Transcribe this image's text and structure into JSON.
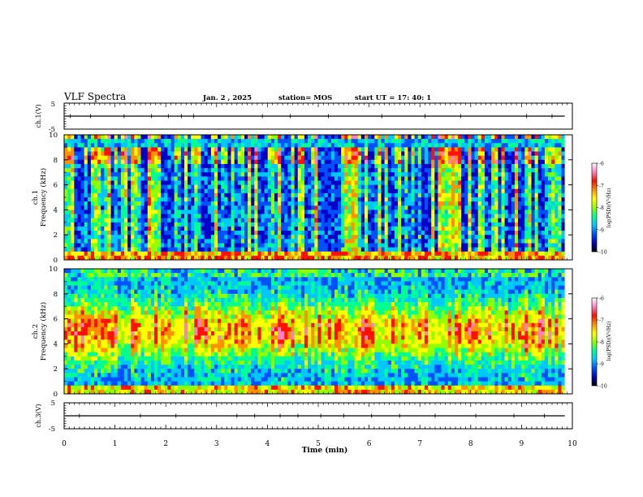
{
  "header": {
    "title": "VLF Spectra",
    "date": "Jan. 2 , 2025",
    "station": "station= MOS",
    "start": "start UT = 17: 40: 1"
  },
  "chart_data": [
    {
      "type": "line",
      "panel": "ch1-waveform",
      "ylabel": "ch.1(V)",
      "ylim": [
        -5,
        5
      ],
      "yticks": [
        "5",
        "-5"
      ],
      "xlim": [
        0,
        10
      ],
      "baseline": 0,
      "spike_times": [
        0.12,
        0.52,
        1.18,
        1.72,
        2.05,
        2.31,
        2.55,
        3.9,
        4.45,
        5.2,
        6.25,
        7.1,
        7.8,
        9.1,
        9.6
      ]
    },
    {
      "type": "heatmap",
      "panel": "ch1-spectrogram",
      "ylabel_1": "ch.1",
      "ylabel_2": "Frequency (kHz)",
      "ylim": [
        0,
        10
      ],
      "yticks": [
        "0",
        "2",
        "4",
        "6",
        "8",
        "10"
      ],
      "xlim": [
        0,
        9.85
      ],
      "colorbar": {
        "label": "log(PSD)(V²/Hz)",
        "range": [
          -10,
          -6
        ],
        "ticks": [
          "-6",
          "-7",
          "-8",
          "-9",
          "-10"
        ]
      }
    },
    {
      "type": "heatmap",
      "panel": "ch2-spectrogram",
      "ylabel_1": "ch.2",
      "ylabel_2": "Frequency (kHz)",
      "ylim": [
        0,
        10
      ],
      "yticks": [
        "0",
        "2",
        "4",
        "6",
        "8",
        "10"
      ],
      "xlim": [
        0,
        9.85
      ],
      "colorbar": {
        "label": "log(PSD)(V²/Hz)",
        "range": [
          -10,
          -6
        ],
        "ticks": [
          "-6",
          "-7",
          "-8",
          "-9",
          "-10"
        ]
      }
    },
    {
      "type": "line",
      "panel": "ch3-waveform",
      "ylabel": "ch.3(V)",
      "ylim": [
        -5,
        5
      ],
      "yticks": [
        "5",
        "-5"
      ],
      "xlim": [
        0,
        10
      ],
      "baseline": 0,
      "spike_times": [
        0.3,
        1.5,
        2.2,
        3.4,
        3.75,
        4.25,
        4.6,
        5.05,
        5.5,
        6.05,
        6.6,
        7.3,
        8.1,
        8.85,
        9.45
      ]
    }
  ],
  "xaxis": {
    "label": "Time (min)",
    "ticks": [
      "0",
      "1",
      "2",
      "3",
      "4",
      "5",
      "6",
      "7",
      "8",
      "9",
      "10"
    ],
    "range": [
      0,
      10
    ]
  },
  "colormap": [
    "#000000",
    "#0000c8",
    "#0050ff",
    "#00c8ff",
    "#00ff90",
    "#90ff00",
    "#ffff00",
    "#ff9000",
    "#ff1000",
    "#ff80c0",
    "#ffffff"
  ]
}
